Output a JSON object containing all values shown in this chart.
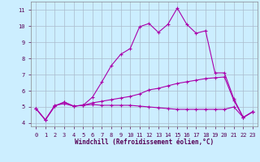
{
  "xlabel": "Windchill (Refroidissement éolien,°C)",
  "x_ticks": [
    0,
    1,
    2,
    3,
    4,
    5,
    6,
    7,
    8,
    9,
    10,
    11,
    12,
    13,
    14,
    15,
    16,
    17,
    18,
    19,
    20,
    21,
    22,
    23
  ],
  "ylim": [
    3.8,
    11.5
  ],
  "xlim": [
    -0.5,
    23.5
  ],
  "yticks": [
    4,
    5,
    6,
    7,
    8,
    9,
    10,
    11
  ],
  "background_color": "#cceeff",
  "line_color": "#aa00aa",
  "line1_x": [
    0,
    1,
    2,
    3,
    4,
    5,
    6,
    7,
    8,
    9,
    10,
    11,
    12,
    13,
    14,
    15,
    16,
    17,
    18,
    19,
    20,
    21,
    22,
    23
  ],
  "line1_y": [
    4.9,
    4.2,
    5.1,
    5.2,
    5.05,
    5.1,
    5.6,
    6.55,
    7.55,
    8.25,
    8.6,
    9.95,
    10.15,
    9.6,
    10.1,
    11.1,
    10.1,
    9.55,
    9.7,
    7.1,
    7.1,
    5.5,
    4.35,
    4.7
  ],
  "line2_x": [
    0,
    1,
    2,
    3,
    4,
    5,
    6,
    7,
    8,
    9,
    10,
    11,
    12,
    13,
    14,
    15,
    16,
    17,
    18,
    19,
    20,
    21,
    22,
    23
  ],
  "line2_y": [
    4.9,
    4.2,
    5.05,
    5.3,
    5.05,
    5.1,
    5.25,
    5.35,
    5.45,
    5.55,
    5.65,
    5.8,
    6.05,
    6.15,
    6.3,
    6.45,
    6.55,
    6.65,
    6.75,
    6.8,
    6.85,
    5.4,
    4.35,
    4.7
  ],
  "line3_x": [
    0,
    1,
    2,
    3,
    4,
    5,
    6,
    7,
    8,
    9,
    10,
    11,
    12,
    13,
    14,
    15,
    16,
    17,
    18,
    19,
    20,
    21,
    22,
    23
  ],
  "line3_y": [
    4.9,
    4.2,
    5.05,
    5.3,
    5.05,
    5.1,
    5.15,
    5.1,
    5.1,
    5.1,
    5.1,
    5.05,
    5.0,
    4.95,
    4.9,
    4.85,
    4.85,
    4.85,
    4.85,
    4.85,
    4.85,
    5.0,
    4.35,
    4.7
  ]
}
